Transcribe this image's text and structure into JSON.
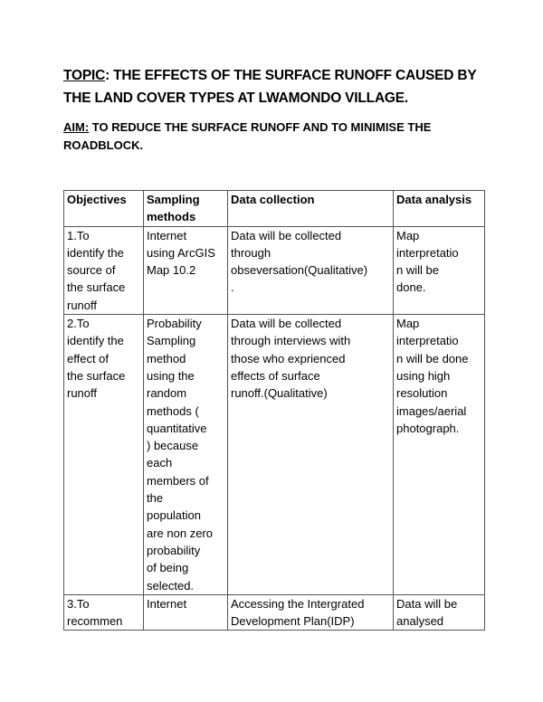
{
  "topic": {
    "label": "TOPIC",
    "text": ": THE EFFECTS OF THE SURFACE RUNOFF CAUSED BY THE LAND COVER TYPES AT LWAMONDO VILLAGE."
  },
  "aim": {
    "label": "AIM:",
    "text": " TO REDUCE THE SURFACE RUNOFF AND TO MINIMISE THE ROADBLOCK."
  },
  "table": {
    "headers": [
      "Objectives",
      "Sampling\nmethods",
      "Data collection",
      "Data analysis"
    ],
    "rows": [
      [
        "1.To\nidentify the\nsource of\nthe surface\nrunoff",
        "Internet\nusing ArcGIS\nMap 10.2",
        "Data will be collected\nthrough\nobseversation(Qualitative)\n.",
        "Map\ninterpretatio\nn will be\ndone."
      ],
      [
        "2.To\nidentify the\neffect of\nthe surface\nrunoff",
        "Probability\nSampling\nmethod\nusing the\nrandom\nmethods (\nquantitative\n) because\neach\nmembers of\nthe\npopulation\nare non zero\nprobability\nof being\nselected.",
        "Data will be collected\nthrough interviews with\nthose who exprienced\neffects of surface\nrunoff.(Qualitative)",
        "Map\ninterpretatio\nn will be done\nusing high\nresolution\nimages/aerial\nphotograph."
      ],
      [
        "3.To\nrecommen",
        "Internet",
        " Accessing the Intergrated\nDevelopment Plan(IDP)",
        "Data will be\nanalysed"
      ]
    ]
  }
}
